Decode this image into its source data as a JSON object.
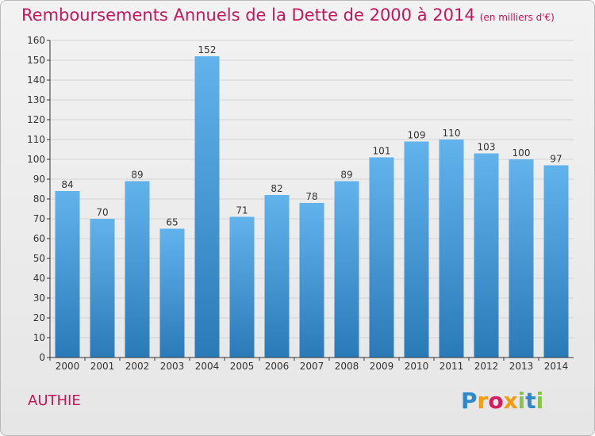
{
  "header": {
    "title": "Remboursements Annuels de la Dette de 2000 à 2014",
    "unit": "(en milliers d'€)"
  },
  "footer": {
    "commune": "AUTHIE",
    "logo_text": "Proxiti",
    "logo_colors": [
      "#2e88c9",
      "#f39c12",
      "#d81b60",
      "#f39c12",
      "#8bc34a",
      "#2e88c9",
      "#8bc34a"
    ]
  },
  "colors": {
    "accent": "#c2185b",
    "bar_top": "#62b3ec",
    "bar_bottom": "#2a7ab8",
    "axis": "#333333",
    "grid": "#d4d4d4"
  },
  "chart_data": {
    "type": "bar",
    "categories": [
      "2000",
      "2001",
      "2002",
      "2003",
      "2004",
      "2005",
      "2006",
      "2007",
      "2008",
      "2009",
      "2010",
      "2011",
      "2012",
      "2013",
      "2014"
    ],
    "values": [
      84,
      70,
      89,
      65,
      152,
      71,
      82,
      78,
      89,
      101,
      109,
      110,
      103,
      100,
      97
    ],
    "title": "Remboursements Annuels de la Dette de 2000 à 2014",
    "xlabel": "",
    "ylabel": "",
    "ylim": [
      0,
      160
    ],
    "yticks": [
      0,
      10,
      20,
      30,
      40,
      50,
      60,
      70,
      80,
      90,
      100,
      110,
      120,
      130,
      140,
      150,
      160
    ],
    "grid": true,
    "data_labels": true
  }
}
